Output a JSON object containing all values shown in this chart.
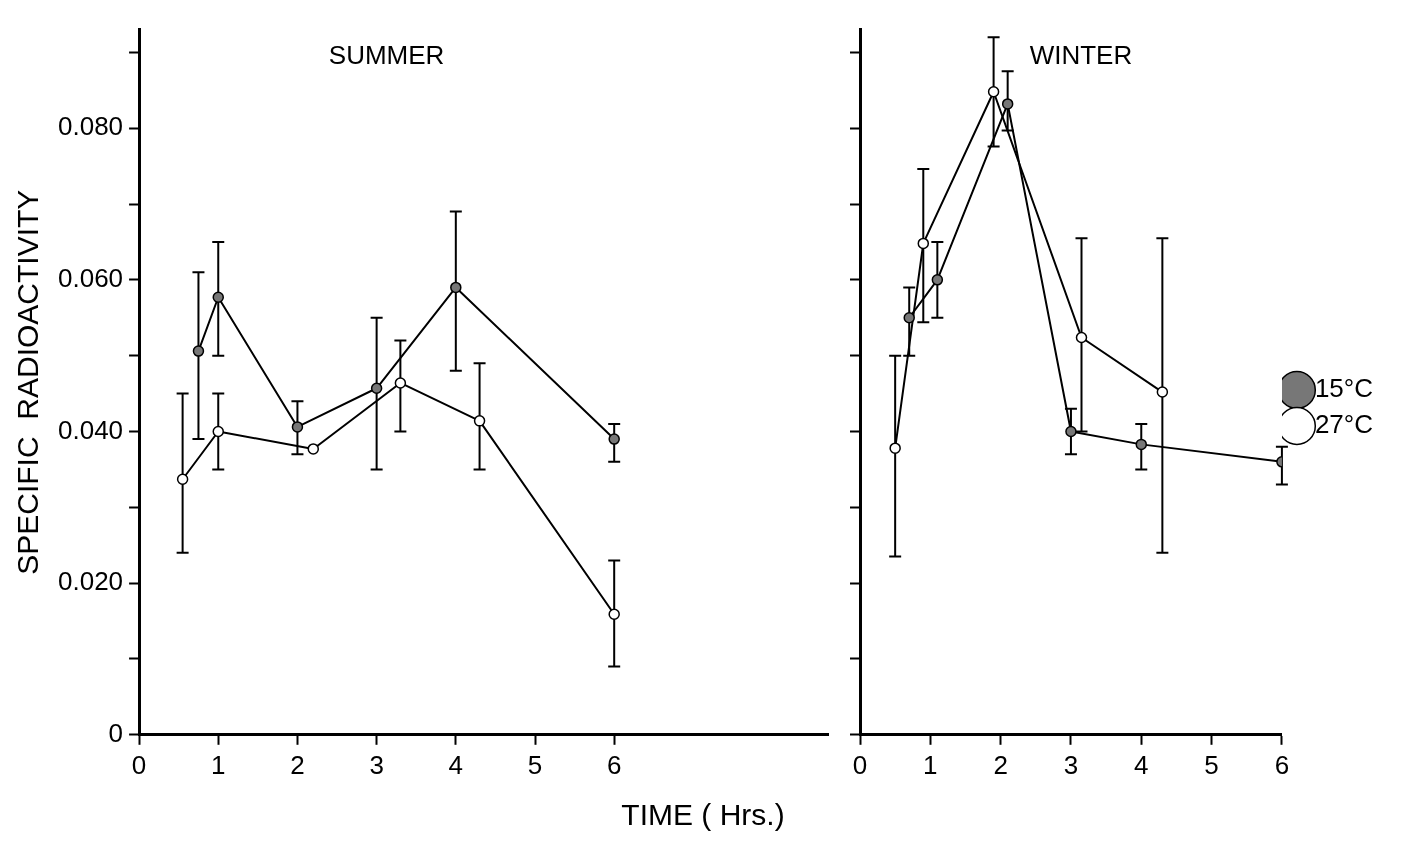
{
  "chart_data": [
    {
      "type": "line",
      "title": "SUMMER",
      "xlabel": "TIME ( Hrs.)",
      "ylabel": "SPECIFIC  RADIOACTIVITY",
      "xlim": [
        0,
        8.7
      ],
      "xticks": [
        0,
        1,
        2,
        3,
        4,
        5,
        6
      ],
      "ylim": [
        0,
        0.093
      ],
      "yticks": [
        {
          "value": 0,
          "label": "0"
        },
        {
          "value": 0.01,
          "label": null
        },
        {
          "value": 0.02,
          "label": "0.020"
        },
        {
          "value": 0.03,
          "label": null
        },
        {
          "value": 0.04,
          "label": "0.040"
        },
        {
          "value": 0.05,
          "label": null
        },
        {
          "value": 0.06,
          "label": "0.060"
        },
        {
          "value": 0.07,
          "label": null
        },
        {
          "value": 0.08,
          "label": "0.080"
        },
        {
          "value": 0.09,
          "label": null
        }
      ],
      "grid": false,
      "marker": "circle",
      "line_style": "solid",
      "series": [
        {
          "color": "#777777",
          "x": [
            0.75,
            1,
            2,
            3,
            4,
            6
          ],
          "values": [
            0.0506,
            0.0577,
            0.0406,
            0.0457,
            0.059,
            0.039
          ],
          "errors": [
            [
              0.039,
              0.061
            ],
            [
              0.05,
              0.065
            ],
            [
              0.037,
              0.044
            ],
            [
              0.035,
              0.055
            ],
            [
              0.048,
              0.069
            ],
            [
              0.036,
              0.041
            ]
          ]
        },
        {
          "color": "#ffffff",
          "x": [
            0.55,
            1,
            2.2,
            3.3,
            4.3,
            6
          ],
          "values": [
            0.0337,
            0.04,
            0.0377,
            0.0464,
            0.0414,
            0.0159
          ],
          "errors": [
            [
              0.024,
              0.045
            ],
            [
              0.035,
              0.045
            ],
            null,
            [
              0.04,
              0.052
            ],
            [
              0.035,
              0.049
            ],
            [
              0.009,
              0.023
            ]
          ]
        }
      ]
    },
    {
      "type": "line",
      "title": "WINTER",
      "xlim": [
        0,
        6
      ],
      "xticks": [
        0,
        1,
        2,
        3,
        4,
        5,
        6
      ],
      "ylim": [
        0,
        0.093
      ],
      "yticks": [
        {
          "value": 0,
          "label": null
        },
        {
          "value": 0.01,
          "label": null
        },
        {
          "value": 0.02,
          "label": null
        },
        {
          "value": 0.03,
          "label": null
        },
        {
          "value": 0.04,
          "label": null
        },
        {
          "value": 0.05,
          "label": null
        },
        {
          "value": 0.06,
          "label": null
        },
        {
          "value": 0.07,
          "label": null
        },
        {
          "value": 0.08,
          "label": null
        },
        {
          "value": 0.09,
          "label": null
        }
      ],
      "tick_labels": "x",
      "grid": false,
      "marker": "circle",
      "line_style": "solid",
      "legend": "right",
      "series": [
        {
          "name": "15°C",
          "color": "#777777",
          "x": [
            0.7,
            1.1,
            2.1,
            3,
            4,
            6
          ],
          "values": [
            0.055,
            0.06,
            0.0832,
            0.04,
            0.0383,
            0.036
          ],
          "errors": [
            [
              0.05,
              0.059
            ],
            [
              0.055,
              0.065
            ],
            [
              0.0797,
              0.0875
            ],
            [
              0.037,
              0.043
            ],
            [
              0.035,
              0.041
            ],
            [
              0.033,
              0.038
            ]
          ]
        },
        {
          "name": "27°C",
          "color": "#ffffff",
          "x": [
            0.5,
            0.9,
            1.9,
            3.15,
            4.3
          ],
          "values": [
            0.0378,
            0.0648,
            0.0848,
            0.0524,
            0.0452
          ],
          "errors": [
            [
              0.0235,
              0.05
            ],
            [
              0.0544,
              0.0746
            ],
            [
              0.0776,
              0.092
            ],
            [
              0.04,
              0.0655
            ],
            [
              0.024,
              0.0655
            ]
          ]
        }
      ]
    }
  ]
}
